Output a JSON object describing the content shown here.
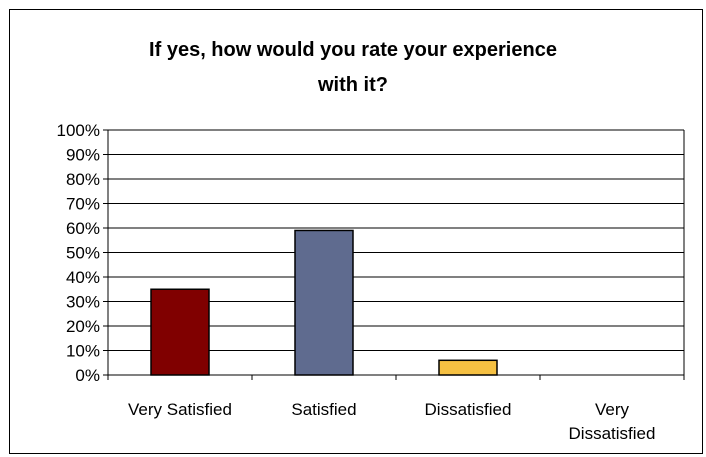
{
  "chart_data": {
    "type": "bar",
    "title": [
      "If yes, how would you rate your experience",
      "with it?"
    ],
    "categories": [
      "Very Satisfied",
      "Satisfied",
      "Dissatisfied",
      "Very Dissatisfied"
    ],
    "category_lines": [
      [
        "Very Satisfied"
      ],
      [
        "Satisfied"
      ],
      [
        "Dissatisfied"
      ],
      [
        "Very",
        "Dissatisfied"
      ]
    ],
    "values": [
      35,
      59,
      6,
      0
    ],
    "bar_colors": [
      "#800000",
      "#5f6b8f",
      "#f5c042",
      "#800000"
    ],
    "y_ticks": [
      "0%",
      "10%",
      "20%",
      "30%",
      "40%",
      "50%",
      "60%",
      "70%",
      "80%",
      "90%",
      "100%"
    ],
    "ylim": [
      0,
      100
    ],
    "grid": true,
    "legend": false
  }
}
